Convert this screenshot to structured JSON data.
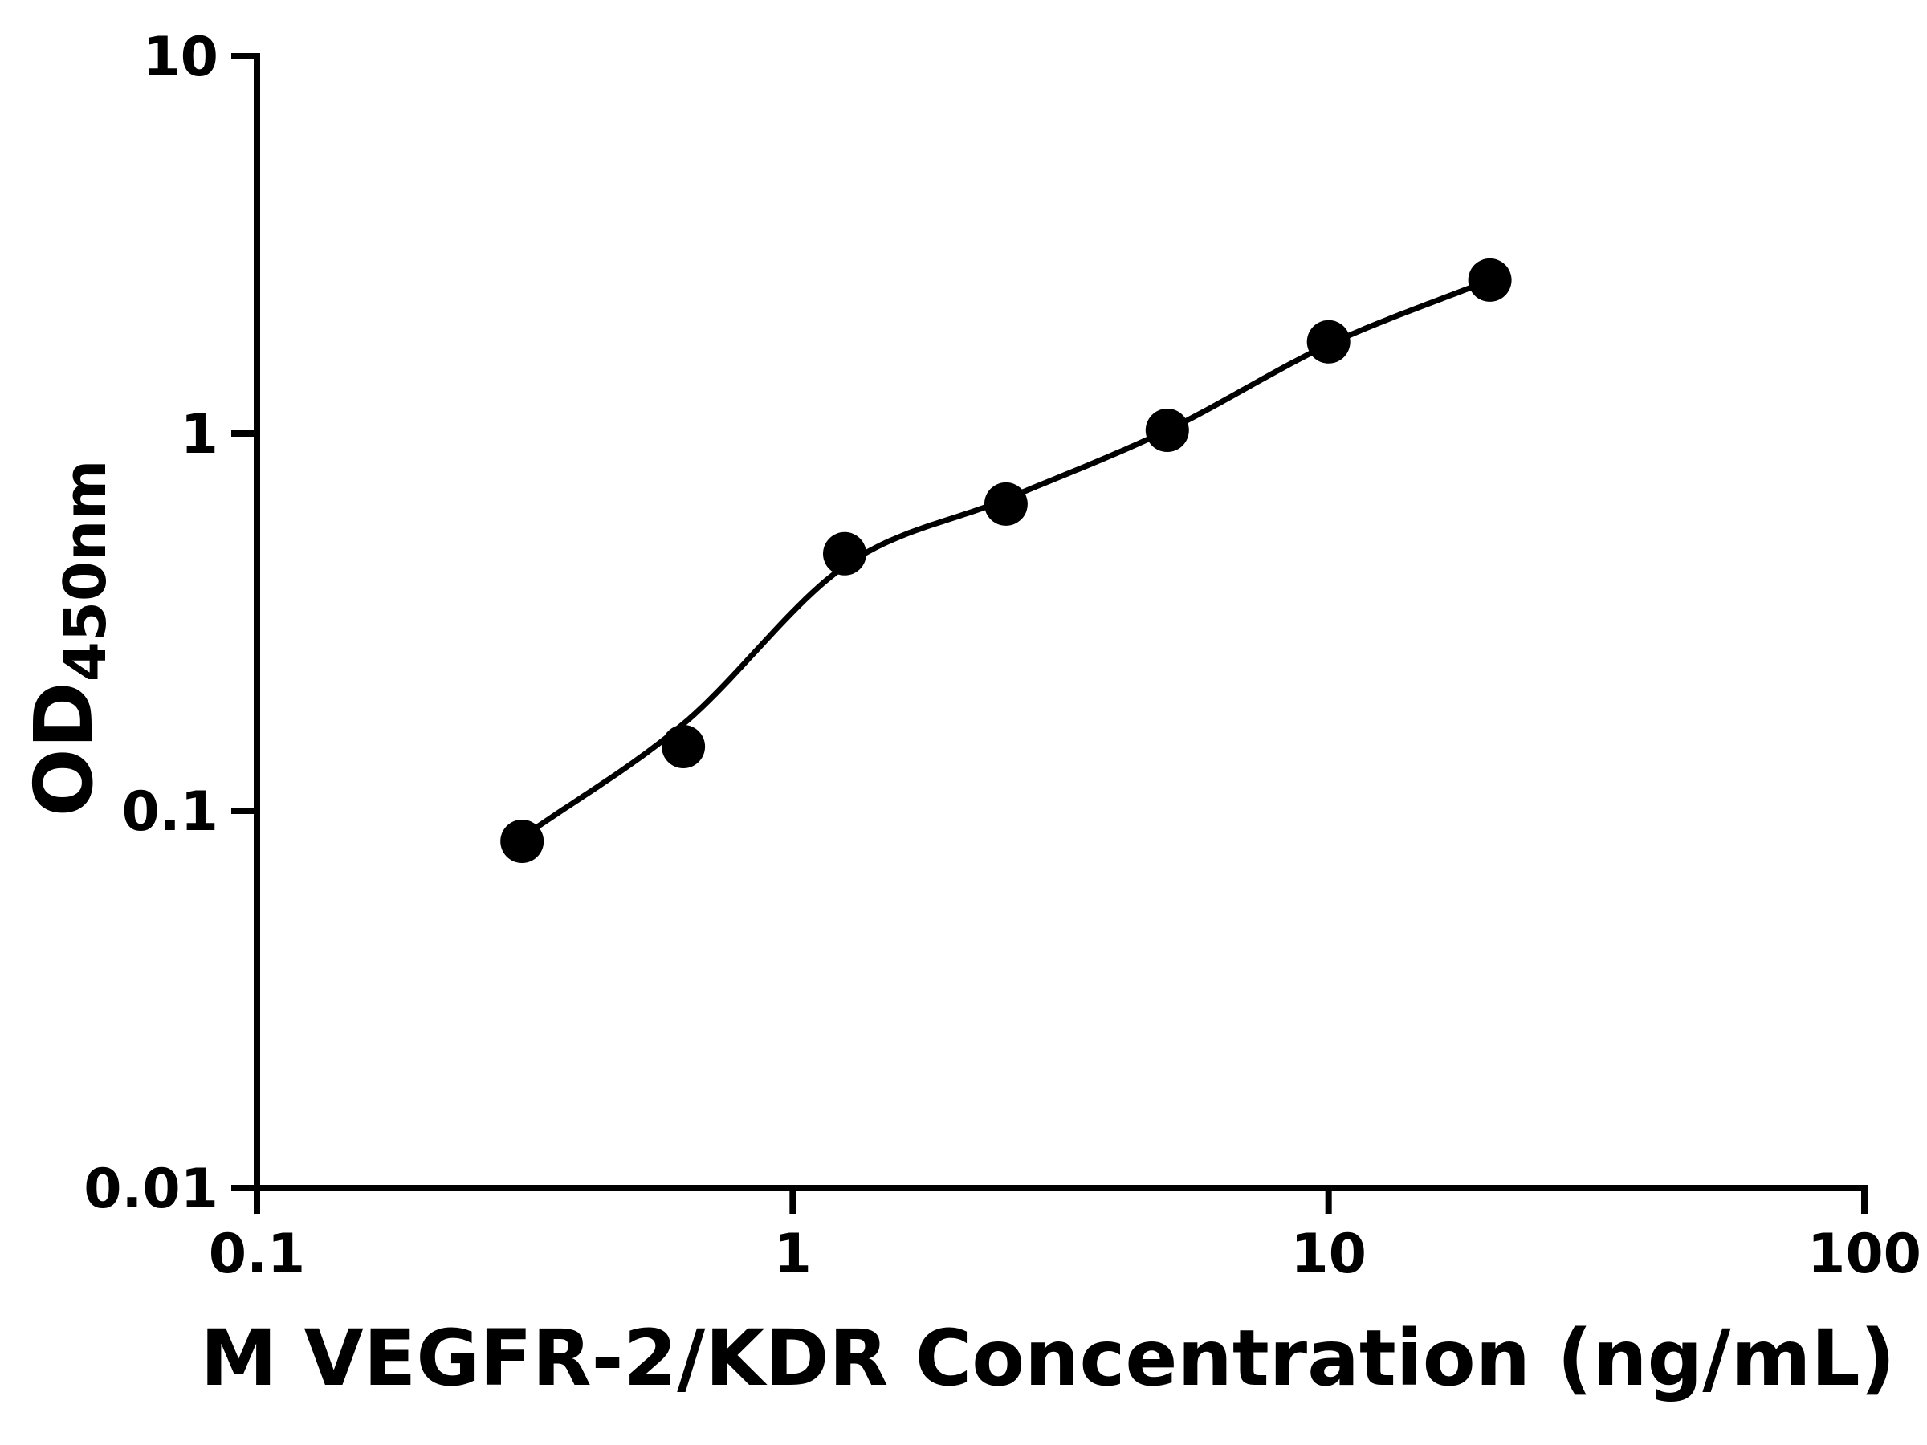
{
  "chart_data": {
    "type": "scatter",
    "title": "",
    "xlabel": "M VEGFR-2/KDR Concentration (ng/mL)",
    "ylabel_main": "OD",
    "ylabel_sub": "450nm",
    "x_scale": "log",
    "y_scale": "log",
    "xlim": [
      0.1,
      100
    ],
    "ylim": [
      0.01,
      10
    ],
    "x_ticks": {
      "labels": [
        "0.1",
        "1",
        "10",
        "100"
      ],
      "values": [
        0.1,
        1,
        10,
        100
      ]
    },
    "y_ticks": {
      "labels": [
        "0.01",
        "0.1",
        "1",
        "10"
      ],
      "values": [
        0.01,
        0.1,
        1,
        10
      ]
    },
    "grid": false,
    "legend": "none",
    "points": {
      "x": [
        0.3125,
        0.625,
        1.25,
        2.5,
        5,
        10,
        20
      ],
      "y": [
        0.083,
        0.148,
        0.48,
        0.65,
        1.02,
        1.75,
        2.55
      ]
    },
    "fit_curve": {
      "x": [
        0.3125,
        0.625,
        1.25,
        2.5,
        5,
        10,
        20
      ],
      "y": [
        0.085,
        0.17,
        0.445,
        0.67,
        1.02,
        1.72,
        2.55
      ]
    },
    "marker": {
      "shape": "circle",
      "color": "#000000",
      "radius_px": 27
    },
    "curve_color": "#000000",
    "axis_color": "#000000",
    "background_color": "#ffffff"
  }
}
